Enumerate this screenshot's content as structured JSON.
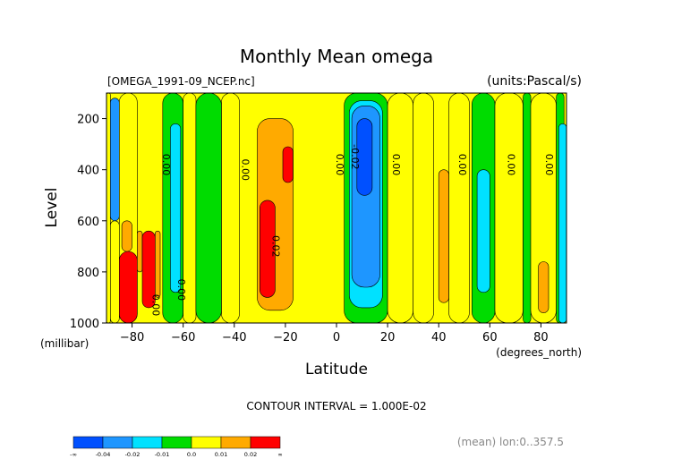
{
  "chart_data": {
    "type": "heatmap",
    "title": "Monthly Mean omega",
    "file_label": "[OMEGA_1991-09_NCEP.nc]",
    "units_label": "(units:Pascal/s)",
    "xlabel": "Latitude",
    "x_units": "(degrees_north)",
    "ylabel": "Level",
    "y_units": "(millibar)",
    "xlim": [
      -90,
      90
    ],
    "ylim": [
      1000,
      100
    ],
    "x_ticks": [
      -80,
      -60,
      -40,
      -20,
      0,
      20,
      40,
      60,
      80
    ],
    "y_ticks": [
      200,
      400,
      600,
      800,
      1000
    ],
    "contour_interval_text": "CONTOUR INTERVAL = 1.000E-02",
    "footer_text": "(mean) lon:0..357.5",
    "contour_labels": [
      {
        "text": "0.00",
        "lat": -68,
        "lev": 380
      },
      {
        "text": "0.00",
        "lat": -37,
        "lev": 400
      },
      {
        "text": "0.02",
        "lat": -25,
        "lev": 700
      },
      {
        "text": "0.00",
        "lat": 0,
        "lev": 380
      },
      {
        "text": "-0.02",
        "lat": 6,
        "lev": 350
      },
      {
        "text": "0.00",
        "lat": 22,
        "lev": 380
      },
      {
        "text": "0.00",
        "lat": 48,
        "lev": 380
      },
      {
        "text": "0.00",
        "lat": 67,
        "lev": 380
      },
      {
        "text": "0.00",
        "lat": 82,
        "lev": 380
      },
      {
        "text": "0.00",
        "lat": -72,
        "lev": 930
      },
      {
        "text": "0.00",
        "lat": -62,
        "lev": 870
      }
    ],
    "legend": {
      "colors": [
        "#0050ff",
        "#1e96ff",
        "#00e1ff",
        "#00dc00",
        "#ffff00",
        "#ffaa00",
        "#ff0000"
      ],
      "labels": [
        "-∞",
        "-0.04",
        "-0.02",
        "-0.01",
        "0.0",
        "0.01",
        "0.02",
        "∞"
      ]
    },
    "bands": [
      {
        "lat": [
          -90,
          -88.5
        ],
        "lev": [
          100,
          1000
        ],
        "value": 0.005
      },
      {
        "lat": [
          -88.5,
          -85
        ],
        "lev": [
          120,
          600
        ],
        "value": -0.025
      },
      {
        "lat": [
          -88.5,
          -85
        ],
        "lev": [
          600,
          1000
        ],
        "value": 0.005
      },
      {
        "lat": [
          -85,
          -78
        ],
        "lev": [
          100,
          1000
        ],
        "value": 0.005
      },
      {
        "lat": [
          -84,
          -80
        ],
        "lev": [
          600,
          720
        ],
        "value": 0.015
      },
      {
        "lat": [
          -85,
          -78
        ],
        "lev": [
          720,
          1000
        ],
        "value": 0.04
      },
      {
        "lat": [
          -78,
          -76
        ],
        "lev": [
          640,
          800
        ],
        "value": 0.015
      },
      {
        "lat": [
          -76,
          -71
        ],
        "lev": [
          640,
          940
        ],
        "value": 0.04
      },
      {
        "lat": [
          -71,
          -69
        ],
        "lev": [
          640,
          900
        ],
        "value": 0.015
      },
      {
        "lat": [
          -68,
          -60
        ],
        "lev": [
          100,
          1000
        ],
        "value": -0.005
      },
      {
        "lat": [
          -65,
          -61
        ],
        "lev": [
          220,
          880
        ],
        "value": -0.015
      },
      {
        "lat": [
          -60,
          -55
        ],
        "lev": [
          100,
          1000
        ],
        "value": 0.005
      },
      {
        "lat": [
          -55,
          -45
        ],
        "lev": [
          100,
          1000
        ],
        "value": -0.005
      },
      {
        "lat": [
          -45,
          -38
        ],
        "lev": [
          100,
          1000
        ],
        "value": 0.005
      },
      {
        "lat": [
          -31,
          -17
        ],
        "lev": [
          200,
          950
        ],
        "value": 0.015
      },
      {
        "lat": [
          -30,
          -24
        ],
        "lev": [
          520,
          900
        ],
        "value": 0.04
      },
      {
        "lat": [
          -21,
          -17
        ],
        "lev": [
          310,
          450
        ],
        "value": 0.04
      },
      {
        "lat": [
          3,
          20
        ],
        "lev": [
          100,
          1000
        ],
        "value": -0.005
      },
      {
        "lat": [
          5,
          18
        ],
        "lev": [
          130,
          940
        ],
        "value": -0.015
      },
      {
        "lat": [
          6,
          17
        ],
        "lev": [
          150,
          860
        ],
        "value": -0.03
      },
      {
        "lat": [
          8,
          14
        ],
        "lev": [
          200,
          500
        ],
        "value": -0.05
      },
      {
        "lat": [
          20,
          30
        ],
        "lev": [
          100,
          1000
        ],
        "value": 0.005
      },
      {
        "lat": [
          30,
          38
        ],
        "lev": [
          100,
          1000
        ],
        "value": 0.005
      },
      {
        "lat": [
          40,
          44
        ],
        "lev": [
          400,
          920
        ],
        "value": 0.015
      },
      {
        "lat": [
          44,
          52
        ],
        "lev": [
          100,
          1000
        ],
        "value": 0.005
      },
      {
        "lat": [
          53,
          62
        ],
        "lev": [
          100,
          1000
        ],
        "value": -0.005
      },
      {
        "lat": [
          55,
          60
        ],
        "lev": [
          400,
          880
        ],
        "value": -0.015
      },
      {
        "lat": [
          62,
          73
        ],
        "lev": [
          100,
          1000
        ],
        "value": 0.005
      },
      {
        "lat": [
          73,
          76
        ],
        "lev": [
          100,
          1000
        ],
        "value": -0.005
      },
      {
        "lat": [
          76,
          86
        ],
        "lev": [
          100,
          1000
        ],
        "value": 0.005
      },
      {
        "lat": [
          79,
          83
        ],
        "lev": [
          760,
          960
        ],
        "value": 0.015
      },
      {
        "lat": [
          86,
          89
        ],
        "lev": [
          100,
          1000
        ],
        "value": -0.005
      },
      {
        "lat": [
          87,
          90
        ],
        "lev": [
          220,
          1000
        ],
        "value": -0.015
      }
    ]
  }
}
